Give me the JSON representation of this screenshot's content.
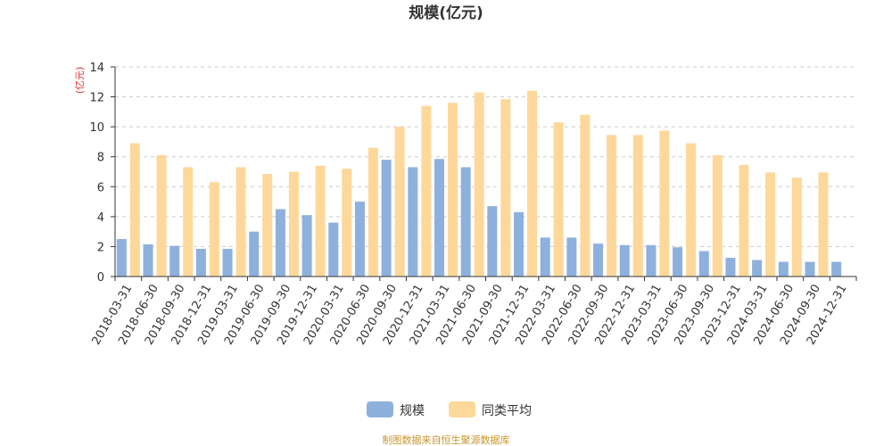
{
  "chart_data": {
    "type": "bar",
    "title": "规模(亿元)",
    "ylabel": "(亿元)",
    "xlabel": "",
    "ylim": [
      0,
      14
    ],
    "yticks": [
      0,
      2,
      4,
      6,
      8,
      10,
      12,
      14
    ],
    "grid": true,
    "legend_position": "bottom-center",
    "categories": [
      "2018-03-31",
      "2018-06-30",
      "2018-09-30",
      "2018-12-31",
      "2019-03-31",
      "2019-06-30",
      "2019-09-30",
      "2019-12-31",
      "2020-03-31",
      "2020-06-30",
      "2020-09-30",
      "2020-12-31",
      "2021-03-31",
      "2021-06-30",
      "2021-09-30",
      "2021-12-31",
      "2022-03-31",
      "2022-06-30",
      "2022-09-30",
      "2022-12-31",
      "2023-03-31",
      "2023-06-30",
      "2023-09-30",
      "2023-12-31",
      "2024-03-31",
      "2024-06-30",
      "2024-09-30",
      "2024-12-31"
    ],
    "series": [
      {
        "name": "规模",
        "color": "#8eb0dd",
        "values": [
          2.5,
          2.15,
          2.05,
          1.85,
          1.85,
          3.0,
          4.5,
          4.1,
          3.6,
          5.0,
          7.8,
          7.3,
          7.85,
          7.3,
          4.7,
          4.3,
          2.6,
          2.6,
          2.2,
          2.1,
          2.1,
          1.95,
          1.7,
          1.25,
          1.1,
          0.98,
          0.98,
          0.98
        ]
      },
      {
        "name": "同类平均",
        "color": "#fdd89a",
        "values": [
          8.9,
          8.1,
          7.3,
          6.3,
          7.3,
          6.85,
          7.0,
          7.4,
          7.2,
          8.6,
          10.0,
          11.4,
          11.6,
          12.3,
          11.85,
          12.4,
          10.3,
          10.8,
          9.45,
          9.45,
          9.75,
          8.9,
          8.1,
          7.45,
          6.95,
          6.6,
          6.95,
          null
        ]
      }
    ]
  },
  "source_note": "制图数据来自恒生聚源数据库"
}
